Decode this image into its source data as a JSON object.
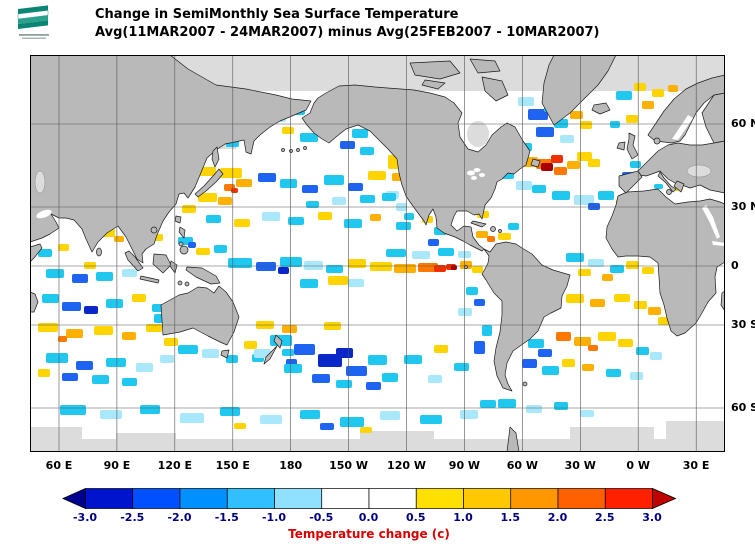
{
  "header": {
    "title_line1": "Change in SemiMonthly Sea Surface Temperature",
    "title_line2": "Avg(11MAR2007 - 24MAR2007) minus Avg(25FEB2007 - 10MAR2007)",
    "logo_name": "noaa-flag-logo"
  },
  "map": {
    "lat_labels": [
      "60 N",
      "30 N",
      "0",
      "30 S",
      "60 S"
    ],
    "lon_labels": [
      "60 E",
      "90 E",
      "120 E",
      "150 E",
      "180",
      "150 W",
      "120 W",
      "90 W",
      "60 W",
      "30 W",
      "0 W",
      "30 E"
    ],
    "colors": {
      "ocean": "#ffffff",
      "land": "#b9b9b9",
      "no_data": "#dcdcdc",
      "grid": "#555555",
      "coastline": "#1a1a1a"
    }
  },
  "colorbar": {
    "title": "Temperature change  (c)",
    "title_color": "#d80000",
    "tick_labels": [
      "-3.0",
      "-2.5",
      "-2.0",
      "-1.5",
      "-1.0",
      "-0.5",
      "0.0",
      "0.5",
      "1.0",
      "1.5",
      "2.0",
      "2.5",
      "3.0"
    ],
    "cell_colors": [
      "#0014cd",
      "#0050ff",
      "#0090ff",
      "#30c0ff",
      "#90e0ff",
      "#ffffff",
      "#ffffff",
      "#ffe000",
      "#ffc800",
      "#ff9800",
      "#ff6000",
      "#ff2000"
    ],
    "arrow_left_color": "#000090",
    "arrow_right_color": "#c00000",
    "tick_color": "#000082"
  }
}
